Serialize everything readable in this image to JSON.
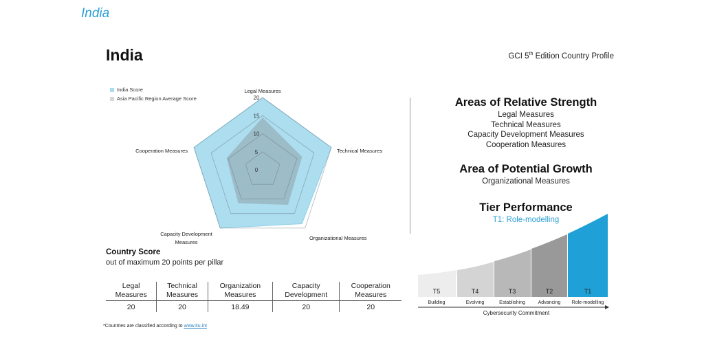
{
  "page_heading": "India",
  "profile": {
    "country": "India",
    "edition_prefix": "GCI 5",
    "edition_sup": "th",
    "edition_suffix": " Edition Country Profile"
  },
  "chart_data": {
    "type": "radar",
    "axes": [
      "Legal Measures",
      "Technical Measures",
      "Organizational Measures",
      "Capacity Development Measures",
      "Cooperation Measures"
    ],
    "range": [
      0,
      20
    ],
    "ticks": [
      0,
      5,
      10,
      15,
      20
    ],
    "tick_labels": [
      "0",
      "5",
      "10",
      "15",
      "20"
    ],
    "series": [
      {
        "name": "India Score",
        "color": "#a8dcef",
        "values": [
          20,
          20,
          18.49,
          20,
          20
        ]
      },
      {
        "name": "Asia Pacific Region Average Score",
        "color": "#9aa3a8",
        "values": [
          14.5,
          11.5,
          12.0,
          11.5,
          10.5
        ]
      }
    ],
    "label_lines": {
      "legal": [
        "Legal Measures"
      ],
      "technical": [
        "Technical Measures"
      ],
      "organizational": [
        "Organizational Measures"
      ],
      "capacity": [
        "Capacity Development",
        "Measures"
      ],
      "cooperation": [
        "Cooperation Measures"
      ]
    }
  },
  "country_score": {
    "title": "Country Score",
    "subtitle": "out of maximum 20 points per pillar",
    "header1": [
      "Legal",
      "Technical",
      "Organization",
      "Capacity",
      "Cooperation"
    ],
    "header2": [
      "Measures",
      "Measures",
      "Measures",
      "Development",
      "Measures"
    ],
    "values": [
      "20",
      "20",
      "18.49",
      "20",
      "20"
    ]
  },
  "footnote": {
    "text": "*Countries are classified according to ",
    "link": "www.itu.int"
  },
  "strength": {
    "title": "Areas of Relative Strength",
    "items": [
      "Legal Measures",
      "Technical Measures",
      "Capacity Development Measures",
      "Cooperation Measures"
    ]
  },
  "growth": {
    "title": "Area of Potential Growth",
    "items": [
      "Organizational Measures"
    ]
  },
  "tier": {
    "title": "Tier Performance",
    "value": "T1: Role-modelling",
    "codes": [
      "T5",
      "T4",
      "T3",
      "T2",
      "T1"
    ],
    "names": [
      "Building",
      "Evolving",
      "Establishing",
      "Advancing",
      "Role-modelling"
    ],
    "colors": [
      "#ededed",
      "#d4d4d4",
      "#b8b8b8",
      "#999999",
      "#1fa0d6"
    ],
    "active": "T1",
    "axis_label": "Cybersecurity Commitment"
  }
}
